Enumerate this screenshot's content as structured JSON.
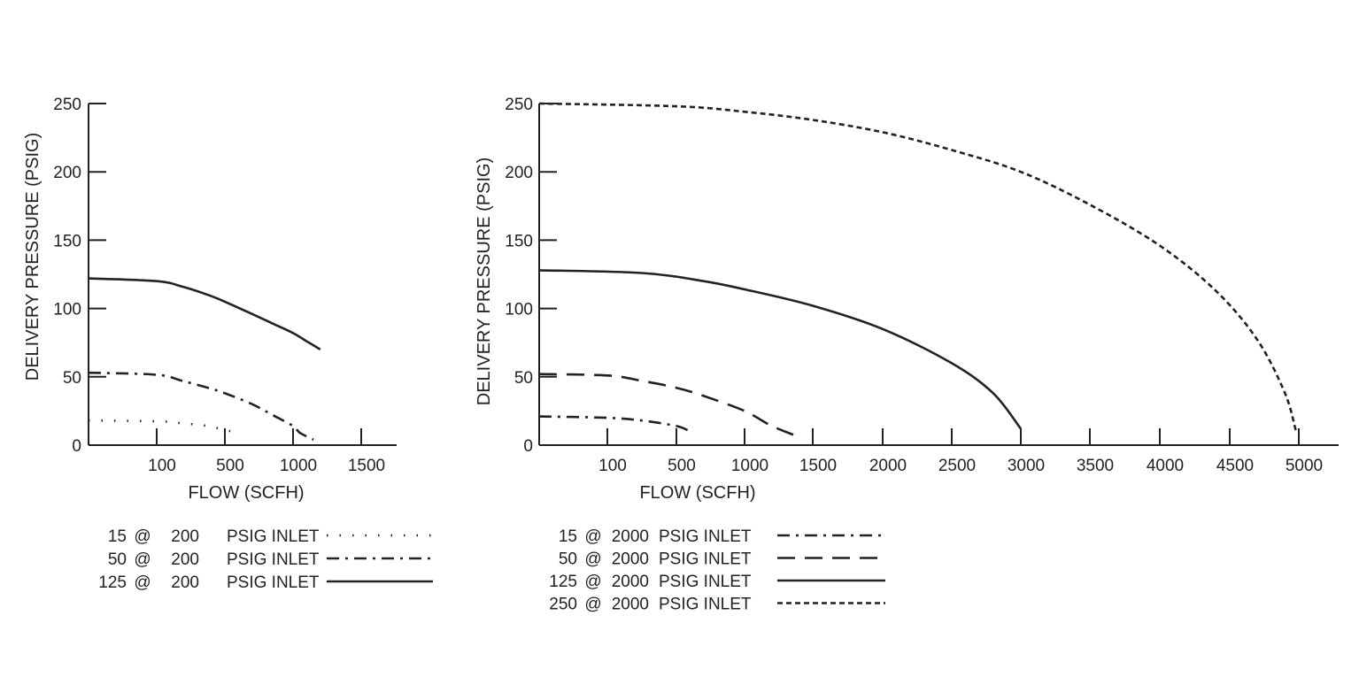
{
  "chart_data": [
    {
      "type": "line",
      "xlabel": "FLOW (SCFH)",
      "ylabel": "DELIVERY PRESSURE (PSIG)",
      "x_tick_labels": [
        "100",
        "500",
        "1000",
        "1500"
      ],
      "y_tick_labels": [
        "0",
        "50",
        "100",
        "150",
        "200",
        "250"
      ],
      "ylim": [
        0,
        250
      ],
      "grid": false,
      "series": [
        {
          "name": "15 @ 200 PSIG INLET",
          "style": "dotted",
          "points": [
            [
              0,
              18
            ],
            [
              100,
              17.5
            ],
            [
              250,
              16
            ],
            [
              400,
              14
            ],
            [
              500,
              11
            ],
            [
              560,
              10
            ]
          ]
        },
        {
          "name": "50 @ 200 PSIG INLET",
          "style": "dash-dot",
          "points": [
            [
              0,
              53
            ],
            [
              100,
              51.5
            ],
            [
              250,
              47
            ],
            [
              400,
              42
            ],
            [
              500,
              38
            ],
            [
              700,
              30
            ],
            [
              850,
              22
            ],
            [
              1000,
              14
            ],
            [
              1050,
              9
            ],
            [
              1150,
              4
            ]
          ]
        },
        {
          "name": "125 @ 200 PSIG INLET",
          "style": "solid",
          "points": [
            [
              0,
              122
            ],
            [
              100,
              120
            ],
            [
              250,
              116
            ],
            [
              400,
              110
            ],
            [
              500,
              105
            ],
            [
              700,
              96
            ],
            [
              850,
              89
            ],
            [
              1000,
              82
            ],
            [
              1100,
              76
            ],
            [
              1200,
              70
            ]
          ]
        }
      ],
      "legend": {
        "placement": "below",
        "rows": [
          {
            "value": "15",
            "at": "@",
            "inlet": "200",
            "unit": "PSIG INLET"
          },
          {
            "value": "50",
            "at": "@",
            "inlet": "200",
            "unit": "PSIG INLET"
          },
          {
            "value": "125",
            "at": "@",
            "inlet": "200",
            "unit": "PSIG INLET"
          }
        ]
      }
    },
    {
      "type": "line",
      "xlabel": "FLOW (SCFH)",
      "ylabel": "DELIVERY PRESSURE (PSIG)",
      "x_tick_labels": [
        "100",
        "500",
        "1000",
        "1500",
        "2000",
        "2500",
        "3000",
        "3500",
        "4000",
        "4500",
        "5000"
      ],
      "y_tick_labels": [
        "0",
        "50",
        "100",
        "150",
        "200",
        "250"
      ],
      "ylim": [
        0,
        250
      ],
      "grid": false,
      "series": [
        {
          "name": "15 @ 2000 PSIG INLET",
          "style": "dash-dot",
          "points": [
            [
              0,
              21
            ],
            [
              100,
              20
            ],
            [
              300,
              18
            ],
            [
              500,
              14
            ],
            [
              600,
              10
            ]
          ]
        },
        {
          "name": "50 @ 2000 PSIG INLET",
          "style": "dashed",
          "points": [
            [
              0,
              52
            ],
            [
              100,
              51
            ],
            [
              300,
              47
            ],
            [
              500,
              42
            ],
            [
              700,
              36
            ],
            [
              1000,
              25
            ],
            [
              1200,
              14
            ],
            [
              1400,
              6
            ]
          ]
        },
        {
          "name": "125 @ 2000 PSIG INLET",
          "style": "solid",
          "points": [
            [
              0,
              128
            ],
            [
              300,
              126
            ],
            [
              700,
              120
            ],
            [
              1000,
              114
            ],
            [
              1500,
              102
            ],
            [
              2000,
              85
            ],
            [
              2500,
              60
            ],
            [
              2800,
              38
            ],
            [
              3000,
              12
            ]
          ]
        },
        {
          "name": "250 @ 2000 PSIG INLET",
          "style": "short-dash",
          "points": [
            [
              0,
              250
            ],
            [
              500,
              248
            ],
            [
              1000,
              244
            ],
            [
              1500,
              238
            ],
            [
              2000,
              229
            ],
            [
              2500,
              216
            ],
            [
              3000,
              200
            ],
            [
              3500,
              176
            ],
            [
              4000,
              146
            ],
            [
              4400,
              113
            ],
            [
              4700,
              77
            ],
            [
              4900,
              38
            ],
            [
              4980,
              10
            ]
          ]
        }
      ],
      "legend": {
        "placement": "below",
        "rows": [
          {
            "value": "15",
            "at": "@",
            "inlet": "2000",
            "unit": "PSIG INLET"
          },
          {
            "value": "50",
            "at": "@",
            "inlet": "2000",
            "unit": "PSIG INLET"
          },
          {
            "value": "125",
            "at": "@",
            "inlet": "2000",
            "unit": "PSIG INLET"
          },
          {
            "value": "250",
            "at": "@",
            "inlet": "2000",
            "unit": "PSIG INLET"
          }
        ]
      }
    }
  ]
}
